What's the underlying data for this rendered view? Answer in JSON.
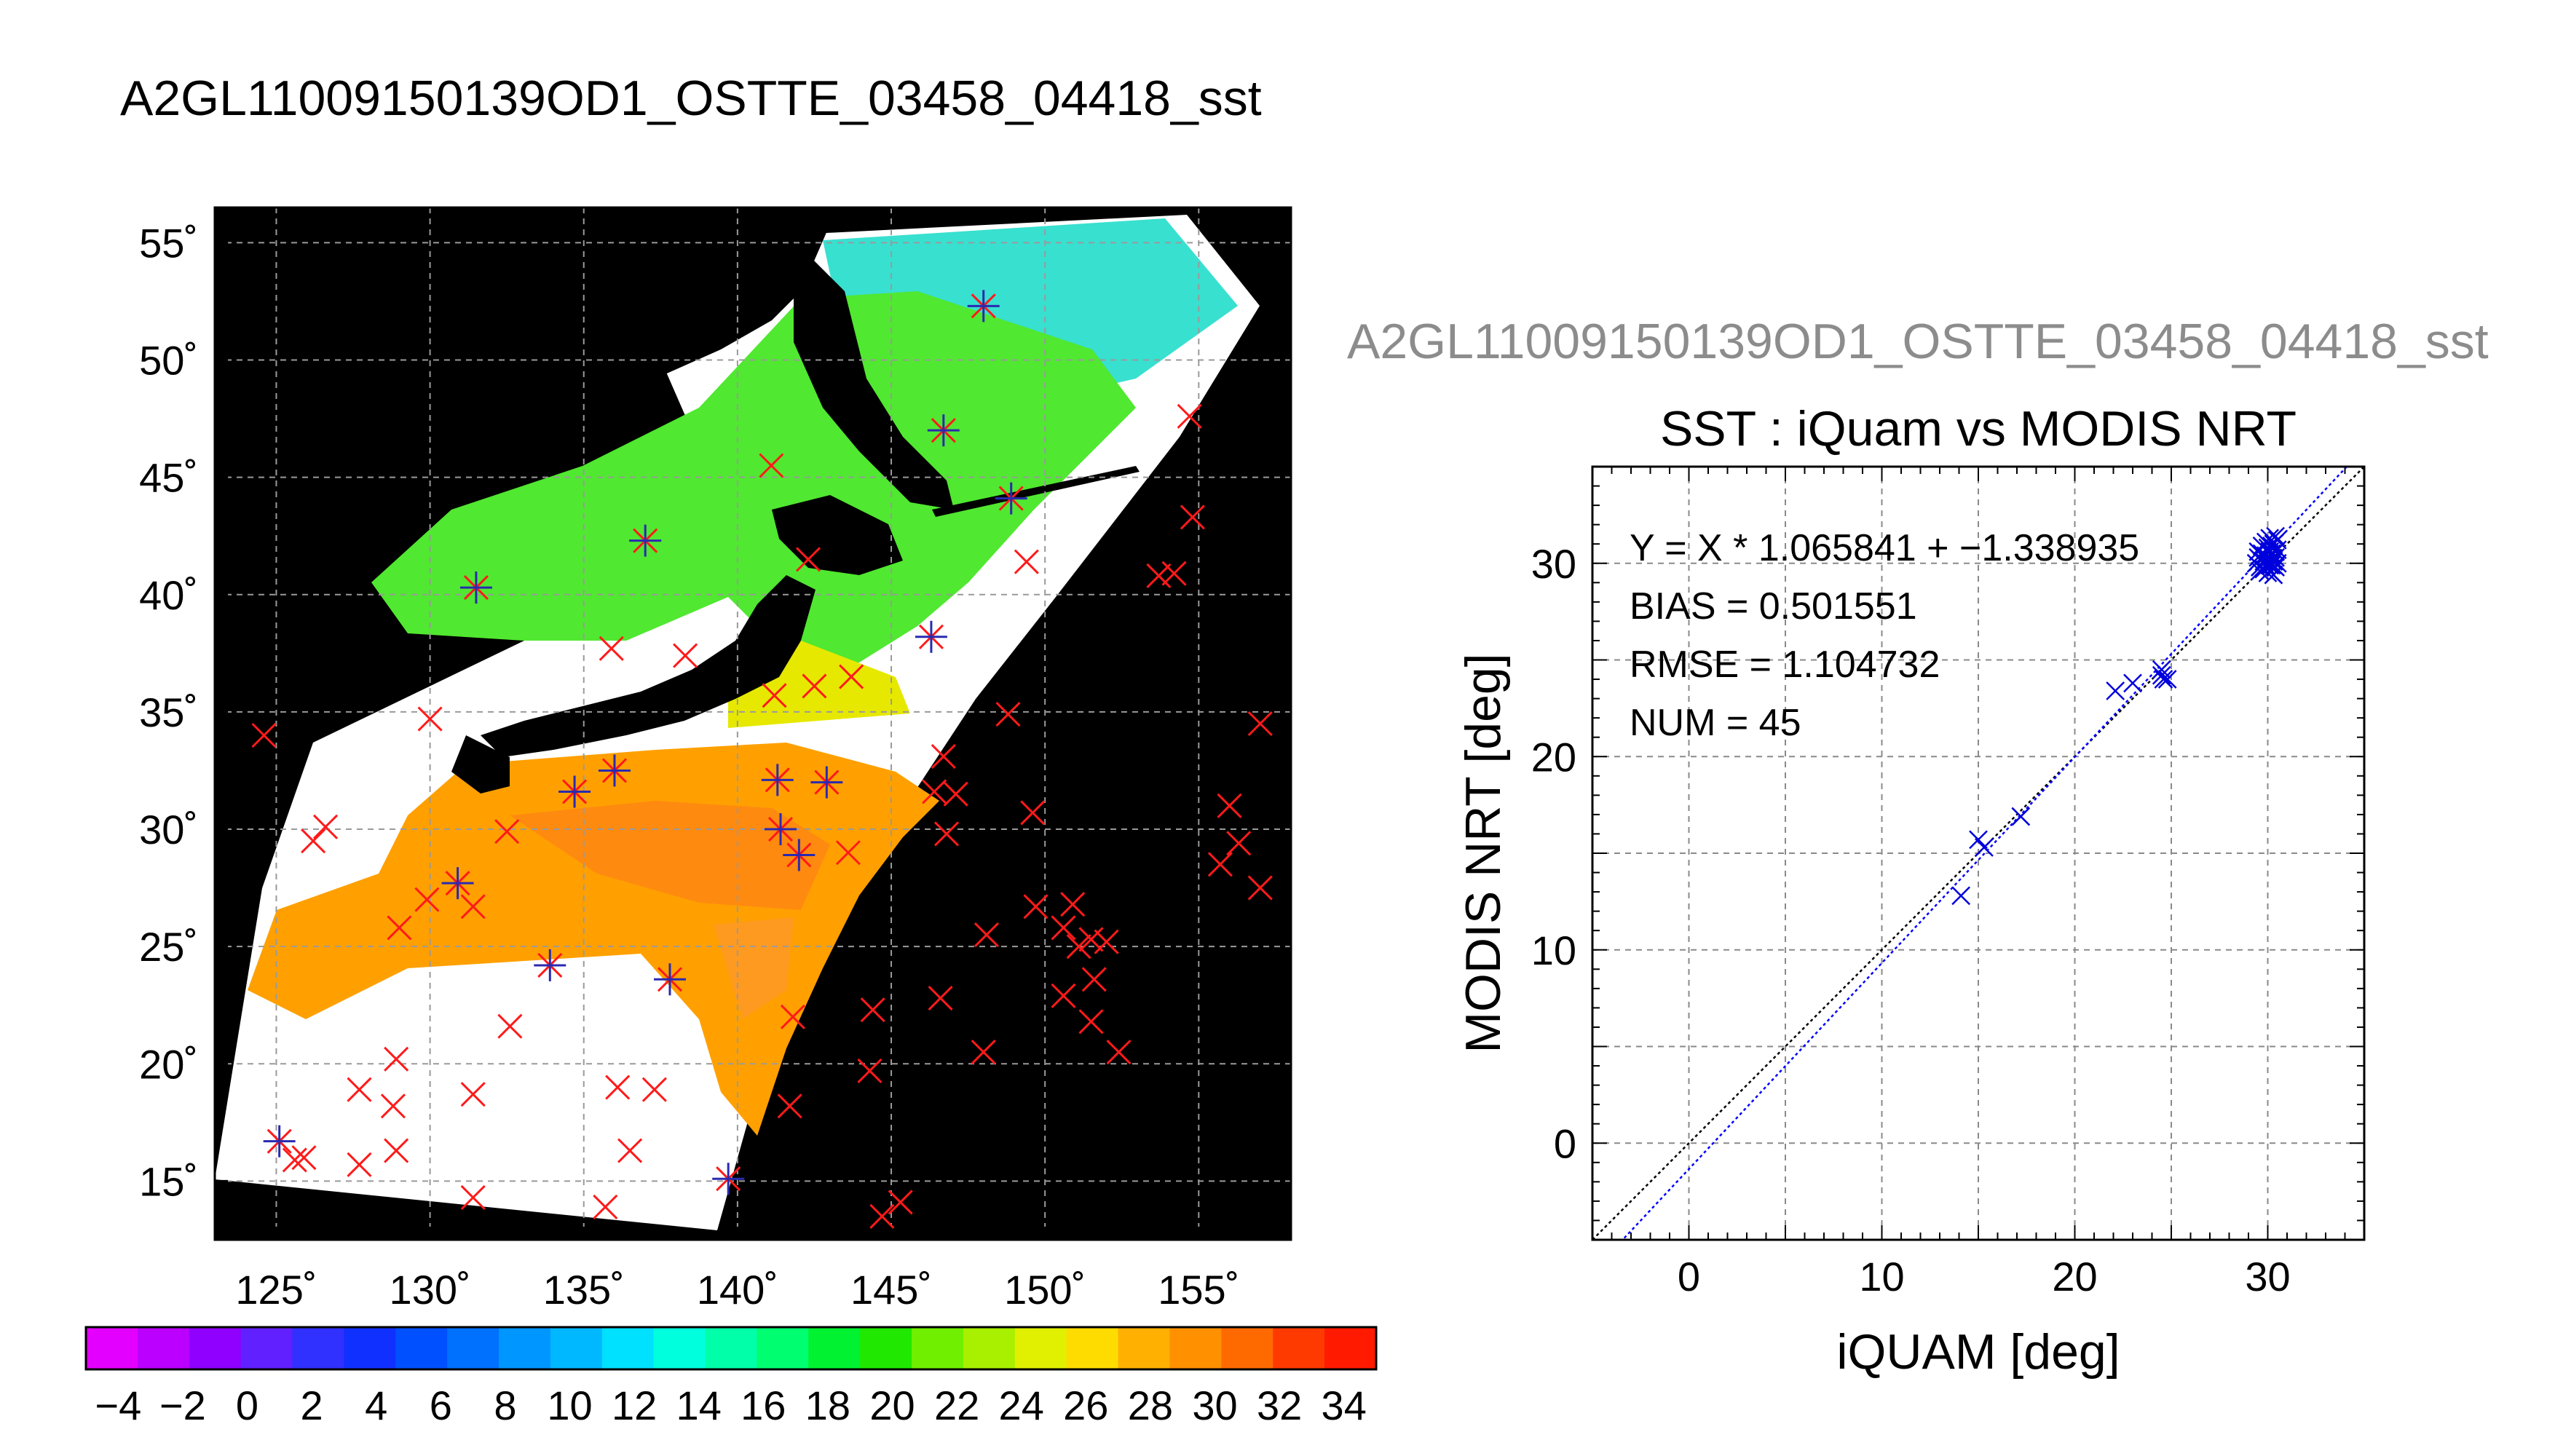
{
  "title": "A2GL11009150139OD1_OSTTE_03458_04418_sst",
  "colors": {
    "background": "#ffffff",
    "map_bg": "#000000",
    "grid": "#9a9a9a",
    "match_marker": "#ff1a1a",
    "scatter_marker": "#0000dd",
    "fit_line": "#0000ff",
    "identity_line": "#000000"
  },
  "chart_data": [
    {
      "type": "heatmap",
      "panel": "sst-map",
      "title": "",
      "xlabel": "",
      "ylabel": "",
      "x_ticks": [
        "125˚",
        "130˚",
        "135˚",
        "140˚",
        "145˚",
        "150˚",
        "155˚"
      ],
      "x_tick_values": [
        125,
        130,
        135,
        140,
        145,
        150,
        155
      ],
      "y_ticks": [
        "15˚",
        "20˚",
        "25˚",
        "30˚",
        "35˚",
        "40˚",
        "45˚",
        "50˚",
        "55˚"
      ],
      "y_tick_values": [
        15,
        20,
        25,
        30,
        35,
        40,
        45,
        50,
        55
      ],
      "xlim": [
        123,
        158
      ],
      "ylim": [
        12.5,
        56.5
      ],
      "grid": true,
      "colorbar": {
        "ticks": [
          "−4",
          "−2",
          "0",
          "2",
          "4",
          "6",
          "8",
          "10",
          "12",
          "14",
          "16",
          "18",
          "20",
          "22",
          "24",
          "26",
          "28",
          "30",
          "32",
          "34"
        ],
        "tick_values": [
          -4,
          -2,
          0,
          2,
          4,
          6,
          8,
          10,
          12,
          14,
          16,
          18,
          20,
          22,
          24,
          26,
          28,
          30,
          32,
          34
        ],
        "range": [
          -5,
          35
        ],
        "colors": [
          "#e400ff",
          "#bb00ff",
          "#8f00ff",
          "#6020ff",
          "#3030ff",
          "#1030ff",
          "#0050ff",
          "#0070ff",
          "#0096ff",
          "#00b8ff",
          "#00e0ff",
          "#00ffdc",
          "#00ffa8",
          "#00ff70",
          "#00f230",
          "#20e800",
          "#70f000",
          "#a8f000",
          "#e0f000",
          "#ffdc00",
          "#ffb000",
          "#ff9000",
          "#ff6a00",
          "#ff3a00",
          "#ff1a00"
        ]
      },
      "matchups_in_swath": [
        [
          148.0,
          52.3
        ],
        [
          146.7,
          47.0
        ],
        [
          148.9,
          44.1
        ],
        [
          137.0,
          42.3
        ],
        [
          131.5,
          40.3
        ],
        [
          146.3,
          38.2
        ],
        [
          136.0,
          32.5
        ],
        [
          141.3,
          32.1
        ],
        [
          142.9,
          32.0
        ],
        [
          134.7,
          31.6
        ],
        [
          141.4,
          30.0
        ],
        [
          142.0,
          28.9
        ],
        [
          130.9,
          27.7
        ],
        [
          133.9,
          24.2
        ],
        [
          137.8,
          23.6
        ],
        [
          125.1,
          16.7
        ],
        [
          139.7,
          15.1
        ]
      ],
      "matchups_other": [
        [
          154.7,
          47.6
        ],
        [
          141.1,
          45.5
        ],
        [
          154.8,
          43.3
        ],
        [
          142.3,
          41.5
        ],
        [
          149.4,
          41.4
        ],
        [
          154.2,
          40.9
        ],
        [
          153.7,
          40.8
        ],
        [
          135.9,
          37.7
        ],
        [
          138.3,
          37.4
        ],
        [
          143.7,
          36.5
        ],
        [
          142.5,
          36.1
        ],
        [
          141.2,
          35.7
        ],
        [
          148.8,
          34.9
        ],
        [
          130.0,
          34.7
        ],
        [
          124.6,
          34.0
        ],
        [
          157.0,
          34.5
        ],
        [
          146.7,
          33.1
        ],
        [
          146.4,
          31.6
        ],
        [
          147.1,
          31.5
        ],
        [
          149.6,
          30.7
        ],
        [
          126.6,
          30.1
        ],
        [
          126.2,
          29.5
        ],
        [
          132.5,
          29.9
        ],
        [
          146.8,
          29.8
        ],
        [
          156.0,
          31.0
        ],
        [
          156.3,
          29.4
        ],
        [
          155.7,
          28.5
        ],
        [
          157.0,
          27.5
        ],
        [
          143.6,
          29.0
        ],
        [
          129.9,
          27.0
        ],
        [
          131.4,
          26.7
        ],
        [
          150.9,
          26.8
        ],
        [
          149.7,
          26.7
        ],
        [
          150.6,
          25.8
        ],
        [
          151.5,
          25.3
        ],
        [
          152.0,
          25.2
        ],
        [
          129.0,
          25.8
        ],
        [
          148.1,
          25.5
        ],
        [
          151.1,
          25.0
        ],
        [
          146.6,
          22.8
        ],
        [
          150.6,
          22.9
        ],
        [
          151.6,
          23.6
        ],
        [
          144.4,
          22.3
        ],
        [
          141.8,
          22.0
        ],
        [
          151.5,
          21.8
        ],
        [
          132.6,
          21.6
        ],
        [
          152.4,
          20.5
        ],
        [
          148.0,
          20.5
        ],
        [
          128.9,
          20.2
        ],
        [
          144.3,
          19.7
        ],
        [
          127.7,
          18.9
        ],
        [
          131.4,
          18.7
        ],
        [
          136.1,
          19.0
        ],
        [
          137.3,
          18.9
        ],
        [
          128.8,
          18.2
        ],
        [
          141.7,
          18.2
        ],
        [
          128.9,
          16.3
        ],
        [
          125.9,
          16.0
        ],
        [
          125.6,
          15.9
        ],
        [
          127.7,
          15.7
        ],
        [
          136.5,
          16.3
        ],
        [
          131.4,
          14.3
        ],
        [
          135.7,
          13.9
        ],
        [
          145.3,
          14.1
        ],
        [
          144.7,
          13.5
        ]
      ]
    },
    {
      "type": "scatter",
      "panel": "sst-scatter",
      "title": "SST : iQuam vs MODIS NRT",
      "xlabel": "iQUAM [deg]",
      "ylabel": "MODIS NRT [deg]",
      "xlim": [
        -5,
        35
      ],
      "ylim": [
        -5,
        35
      ],
      "x_ticks": [
        0,
        10,
        20,
        30
      ],
      "y_ticks": [
        0,
        10,
        20,
        30
      ],
      "grid": true,
      "fit": {
        "slope": 1.065841,
        "intercept": -1.338935
      },
      "annotations": [
        "Y = X * 1.065841 + −1.338935",
        "BIAS = 0.501551",
        "RMSE = 1.104732",
        "NUM = 45"
      ],
      "points": [
        [
          14.1,
          12.8
        ],
        [
          15.0,
          15.7
        ],
        [
          15.3,
          15.3
        ],
        [
          17.2,
          16.9
        ],
        [
          22.1,
          23.4
        ],
        [
          23.0,
          23.8
        ],
        [
          24.5,
          24.2
        ],
        [
          24.8,
          24.0
        ],
        [
          24.5,
          24.5
        ],
        [
          24.6,
          24.0
        ],
        [
          29.4,
          30.0
        ],
        [
          29.5,
          30.3
        ],
        [
          29.6,
          29.8
        ],
        [
          29.7,
          30.5
        ],
        [
          29.8,
          30.1
        ],
        [
          29.9,
          29.9
        ],
        [
          30.0,
          30.8
        ],
        [
          30.0,
          30.2
        ],
        [
          30.1,
          31.3
        ],
        [
          30.1,
          29.6
        ],
        [
          30.2,
          30.4
        ],
        [
          30.2,
          30.9
        ],
        [
          30.3,
          31.0
        ],
        [
          30.3,
          29.4
        ],
        [
          30.4,
          30.6
        ],
        [
          30.4,
          31.4
        ],
        [
          30.5,
          30.0
        ],
        [
          30.5,
          30.7
        ],
        [
          29.5,
          30.6
        ],
        [
          29.6,
          29.6
        ],
        [
          29.7,
          30.9
        ],
        [
          29.8,
          29.7
        ],
        [
          29.9,
          30.4
        ],
        [
          30.0,
          29.5
        ],
        [
          30.1,
          30.6
        ],
        [
          30.2,
          29.9
        ],
        [
          30.3,
          30.1
        ],
        [
          30.4,
          29.8
        ],
        [
          30.5,
          31.2
        ],
        [
          29.6,
          30.2
        ],
        [
          29.9,
          31.1
        ],
        [
          30.0,
          30.0
        ],
        [
          30.2,
          30.5
        ],
        [
          30.4,
          30.3
        ],
        [
          30.1,
          29.9
        ]
      ]
    }
  ]
}
